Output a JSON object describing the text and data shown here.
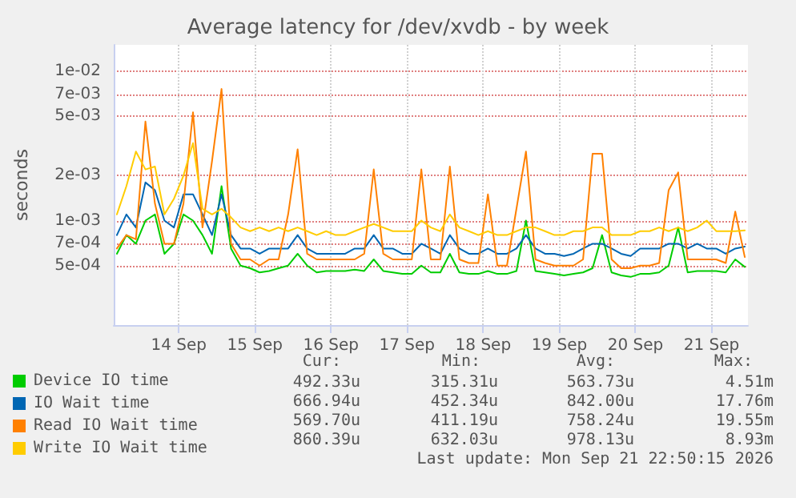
{
  "chart_data": {
    "type": "line",
    "title": "Average latency for /dev/xvdb - by week",
    "ylabel": "seconds",
    "log": "y",
    "grid": true,
    "legend": "bottom",
    "marker": "none",
    "x": [
      "2026-09-13T16:30",
      "2026-09-13T19:30",
      "2026-09-13T22:30",
      "2026-09-14T01:30",
      "2026-09-14T04:30",
      "2026-09-14T07:30",
      "2026-09-14T10:30",
      "2026-09-14T13:30",
      "2026-09-14T16:30",
      "2026-09-14T19:30",
      "2026-09-14T22:30",
      "2026-09-15T01:30",
      "2026-09-15T04:30",
      "2026-09-15T07:30",
      "2026-09-15T10:30",
      "2026-09-15T13:30",
      "2026-09-15T16:30",
      "2026-09-15T19:30",
      "2026-09-15T22:30",
      "2026-09-16T01:30",
      "2026-09-16T04:30",
      "2026-09-16T07:30",
      "2026-09-16T10:30",
      "2026-09-16T13:30",
      "2026-09-16T16:30",
      "2026-09-16T19:30",
      "2026-09-16T22:30",
      "2026-09-17T01:30",
      "2026-09-17T04:30",
      "2026-09-17T07:30",
      "2026-09-17T10:30",
      "2026-09-17T13:30",
      "2026-09-17T16:30",
      "2026-09-17T19:30",
      "2026-09-17T22:30",
      "2026-09-18T01:30",
      "2026-09-18T04:30",
      "2026-09-18T07:30",
      "2026-09-18T10:30",
      "2026-09-18T13:30",
      "2026-09-18T16:30",
      "2026-09-18T19:30",
      "2026-09-18T22:30",
      "2026-09-19T01:30",
      "2026-09-19T04:30",
      "2026-09-19T07:30",
      "2026-09-19T10:30",
      "2026-09-19T13:30",
      "2026-09-19T16:30",
      "2026-09-19T19:30",
      "2026-09-19T22:30",
      "2026-09-20T01:30",
      "2026-09-20T04:30",
      "2026-09-20T07:30",
      "2026-09-20T10:30",
      "2026-09-20T13:30",
      "2026-09-20T16:30",
      "2026-09-20T19:30",
      "2026-09-20T22:30",
      "2026-09-21T01:30",
      "2026-09-21T04:30",
      "2026-09-21T07:30",
      "2026-09-21T10:30",
      "2026-09-21T13:30",
      "2026-09-21T16:30",
      "2026-09-21T19:30",
      "2026-09-21T22:30"
    ],
    "xlim": [
      "2026-09-13T15:30",
      "2026-09-21T23:30"
    ],
    "xticks": [
      {
        "value": "2026-09-14T12:00",
        "label": "14 Sep"
      },
      {
        "value": "2026-09-15T12:00",
        "label": "15 Sep"
      },
      {
        "value": "2026-09-16T12:00",
        "label": "16 Sep"
      },
      {
        "value": "2026-09-17T12:00",
        "label": "17 Sep"
      },
      {
        "value": "2026-09-18T12:00",
        "label": "18 Sep"
      },
      {
        "value": "2026-09-19T12:00",
        "label": "19 Sep"
      },
      {
        "value": "2026-09-20T12:00",
        "label": "20 Sep"
      },
      {
        "value": "2026-09-21T12:00",
        "label": "21 Sep"
      }
    ],
    "ylim": [
      0.0002,
      0.015
    ],
    "yticks": [
      {
        "value": 0.0005,
        "label": "5e-04"
      },
      {
        "value": 0.0007,
        "label": "7e-04"
      },
      {
        "value": 0.001,
        "label": "1e-03"
      },
      {
        "value": 0.002,
        "label": "2e-03"
      },
      {
        "value": 0.005,
        "label": "5e-03"
      },
      {
        "value": 0.007,
        "label": "7e-03"
      },
      {
        "value": 0.01,
        "label": "1e-02"
      }
    ],
    "series": [
      {
        "name": "Device IO time",
        "color": "#00cc00",
        "values": [
          0.0006,
          0.0008,
          0.0007,
          0.001,
          0.0011,
          0.0006,
          0.0007,
          0.0011,
          0.001,
          0.0008,
          0.0006,
          0.0017,
          0.00065,
          0.0005,
          0.00048,
          0.00045,
          0.00046,
          0.00048,
          0.0005,
          0.0006,
          0.0005,
          0.00045,
          0.00046,
          0.00046,
          0.00046,
          0.00047,
          0.00046,
          0.00055,
          0.00046,
          0.00045,
          0.00044,
          0.00044,
          0.0005,
          0.00045,
          0.00045,
          0.0006,
          0.00045,
          0.00044,
          0.00044,
          0.00046,
          0.00044,
          0.00044,
          0.00046,
          0.001,
          0.00046,
          0.00045,
          0.00044,
          0.00043,
          0.00044,
          0.00045,
          0.00048,
          0.0008,
          0.00045,
          0.00043,
          0.00042,
          0.00044,
          0.00044,
          0.00045,
          0.0005,
          0.0009,
          0.00045,
          0.00046,
          0.00046,
          0.00046,
          0.00045,
          0.00055,
          0.00049
        ]
      },
      {
        "name": "IO Wait time",
        "color": "#0066b3",
        "values": [
          0.0008,
          0.0011,
          0.0009,
          0.0018,
          0.0016,
          0.001,
          0.0009,
          0.0015,
          0.0015,
          0.0011,
          0.0008,
          0.0015,
          0.0008,
          0.00065,
          0.00065,
          0.0006,
          0.00065,
          0.00065,
          0.00065,
          0.0008,
          0.00065,
          0.0006,
          0.0006,
          0.0006,
          0.0006,
          0.00065,
          0.00065,
          0.0008,
          0.00065,
          0.00065,
          0.0006,
          0.0006,
          0.0007,
          0.00065,
          0.0006,
          0.0008,
          0.00065,
          0.0006,
          0.0006,
          0.00065,
          0.0006,
          0.0006,
          0.00065,
          0.0008,
          0.00065,
          0.0006,
          0.0006,
          0.00058,
          0.0006,
          0.00065,
          0.0007,
          0.0007,
          0.00065,
          0.0006,
          0.00058,
          0.00065,
          0.00065,
          0.00065,
          0.0007,
          0.0007,
          0.00065,
          0.0007,
          0.00065,
          0.00065,
          0.0006,
          0.00065,
          0.00067
        ]
      },
      {
        "name": "Read IO Wait time",
        "color": "#ff8000",
        "values": [
          0.00065,
          0.0008,
          0.00075,
          0.0046,
          0.0013,
          0.0007,
          0.0007,
          0.0013,
          0.0053,
          0.0009,
          0.0025,
          0.0076,
          0.0007,
          0.00055,
          0.00055,
          0.0005,
          0.00055,
          0.00055,
          0.0011,
          0.003,
          0.0006,
          0.00055,
          0.00055,
          0.00055,
          0.00055,
          0.00055,
          0.0006,
          0.0022,
          0.0006,
          0.00055,
          0.00055,
          0.00055,
          0.0022,
          0.00055,
          0.00055,
          0.0023,
          0.00055,
          0.00052,
          0.00052,
          0.0015,
          0.0005,
          0.0005,
          0.0012,
          0.0029,
          0.00055,
          0.00052,
          0.0005,
          0.0005,
          0.0005,
          0.00055,
          0.0028,
          0.0028,
          0.00055,
          0.00048,
          0.00048,
          0.0005,
          0.0005,
          0.00052,
          0.0016,
          0.0021,
          0.00055,
          0.00055,
          0.00055,
          0.00055,
          0.00052,
          0.00115,
          0.00057
        ]
      },
      {
        "name": "Write IO Wait time",
        "color": "#ffcc00",
        "values": [
          0.0011,
          0.0017,
          0.0029,
          0.0022,
          0.0023,
          0.0011,
          0.0014,
          0.002,
          0.0033,
          0.0012,
          0.0011,
          0.0012,
          0.00105,
          0.0009,
          0.00085,
          0.0009,
          0.00085,
          0.0009,
          0.00085,
          0.0009,
          0.00085,
          0.0008,
          0.00085,
          0.0008,
          0.0008,
          0.00085,
          0.0009,
          0.00095,
          0.0009,
          0.00085,
          0.00085,
          0.00085,
          0.001,
          0.0009,
          0.00085,
          0.0011,
          0.0009,
          0.00085,
          0.0008,
          0.00085,
          0.0008,
          0.0008,
          0.00085,
          0.0009,
          0.0009,
          0.00085,
          0.0008,
          0.0008,
          0.00085,
          0.00085,
          0.0009,
          0.0009,
          0.0008,
          0.0008,
          0.0008,
          0.00085,
          0.00085,
          0.0009,
          0.00085,
          0.0009,
          0.00085,
          0.0009,
          0.001,
          0.00085,
          0.00085,
          0.00085,
          0.00086
        ]
      }
    ],
    "annotations": [
      "Cur:",
      "Min:",
      "Avg:",
      "Max:",
      "492.33u",
      "315.31u",
      "563.73u",
      "4.51m",
      "666.94u",
      "452.34u",
      "842.00u",
      "17.76m",
      "569.70u",
      "411.19u",
      "758.24u",
      "19.55m",
      "860.39u",
      "632.03u",
      "978.13u",
      "8.93m",
      "Last update: Mon Sep 21 22:50:15 2026"
    ]
  }
}
